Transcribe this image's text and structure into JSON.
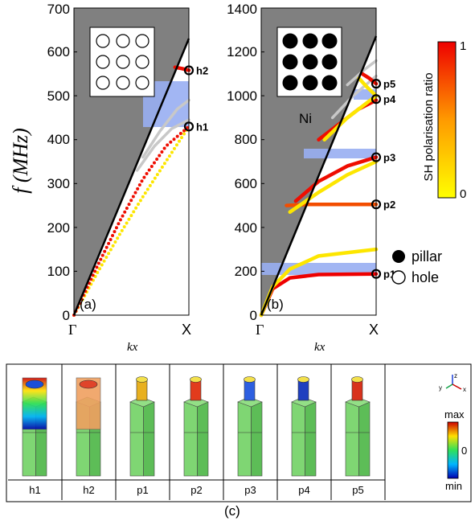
{
  "chart_data": [
    {
      "type": "line",
      "panel_label": "(a)",
      "ylabel": "f (MHz)",
      "xlabel": "kx",
      "x_ticks": [
        "Γ",
        "X"
      ],
      "ylim": [
        0,
        700
      ],
      "y_ticks": [
        0,
        100,
        200,
        300,
        400,
        500,
        600,
        700
      ],
      "bandgaps": [
        [
          430,
          520
        ]
      ],
      "series": [
        {
          "sh": 0.1,
          "style": "dotted",
          "x": [
            0,
            0.2,
            0.4,
            0.6,
            0.8,
            1.0
          ],
          "y": [
            0,
            95,
            185,
            270,
            350,
            430
          ]
        },
        {
          "sh": 0.95,
          "style": "dotted",
          "x": [
            0,
            0.2,
            0.4,
            0.6,
            0.8,
            1.0
          ],
          "y": [
            0,
            110,
            215,
            310,
            385,
            430
          ]
        },
        {
          "sh": 0.0,
          "style": "solid",
          "x": [
            0.55,
            0.7,
            0.85,
            1.0
          ],
          "y": [
            330,
            385,
            425,
            445
          ]
        },
        {
          "sh": 0.0,
          "style": "solid",
          "x": [
            0.6,
            0.75,
            0.9,
            1.0
          ],
          "y": [
            360,
            420,
            470,
            490
          ]
        },
        {
          "sh": 0.95,
          "style": "solid",
          "x": [
            0.88,
            0.94,
            1.0
          ],
          "y": [
            565,
            562,
            558
          ]
        }
      ],
      "modes": [
        {
          "label": "h1",
          "x": 1.0,
          "y": 430
        },
        {
          "label": "h2",
          "x": 1.0,
          "y": 558
        }
      ],
      "inset": "hole"
    },
    {
      "type": "line",
      "panel_label": "(b)",
      "xlabel": "kx",
      "x_ticks": [
        "Γ",
        "X"
      ],
      "ylim": [
        0,
        1400
      ],
      "y_ticks": [
        0,
        200,
        400,
        600,
        800,
        1000,
        1200,
        1400
      ],
      "bandgaps": [
        [
          175,
          230
        ],
        [
          715,
          760
        ],
        [
          985,
          1030
        ]
      ],
      "series": [
        {
          "sh": 1.0,
          "style": "solid",
          "x": [
            0,
            0.1,
            0.25,
            0.5,
            1.0
          ],
          "y": [
            0,
            120,
            170,
            185,
            188
          ]
        },
        {
          "sh": 0.1,
          "style": "solid",
          "x": [
            0,
            0.1,
            0.25,
            0.5,
            1.0
          ],
          "y": [
            0,
            130,
            210,
            270,
            300
          ]
        },
        {
          "sh": 0.7,
          "style": "solid",
          "x": [
            0.22,
            0.4,
            0.7,
            1.0
          ],
          "y": [
            500,
            505,
            505,
            505
          ]
        },
        {
          "sh": 0.1,
          "style": "solid",
          "x": [
            0.25,
            0.5,
            0.75,
            1.0
          ],
          "y": [
            470,
            560,
            640,
            700
          ]
        },
        {
          "sh": 0.95,
          "style": "solid",
          "x": [
            0.3,
            0.5,
            0.75,
            1.0
          ],
          "y": [
            520,
            610,
            680,
            720
          ]
        },
        {
          "sh": 0.95,
          "style": "solid",
          "x": [
            0.5,
            0.7,
            0.85,
            1.0
          ],
          "y": [
            800,
            880,
            940,
            980
          ]
        },
        {
          "sh": 0.1,
          "style": "solid",
          "x": [
            0.55,
            0.75,
            1.0
          ],
          "y": [
            800,
            900,
            1000
          ]
        },
        {
          "sh": 0.0,
          "style": "solid",
          "x": [
            0.62,
            0.8,
            1.0
          ],
          "y": [
            900,
            1000,
            1090
          ]
        },
        {
          "sh": 0.0,
          "style": "solid",
          "x": [
            0.75,
            0.9,
            1.0
          ],
          "y": [
            1050,
            1120,
            1160
          ]
        },
        {
          "sh": 0.95,
          "style": "solid",
          "x": [
            0.88,
            0.94,
            1.0
          ],
          "y": [
            1100,
            1080,
            1055
          ]
        },
        {
          "sh": 0.1,
          "style": "solid",
          "x": [
            0.85,
            0.92,
            1.0
          ],
          "y": [
            1080,
            1040,
            1000
          ]
        }
      ],
      "modes": [
        {
          "label": "p1",
          "x": 1.0,
          "y": 188
        },
        {
          "label": "p2",
          "x": 1.0,
          "y": 505
        },
        {
          "label": "p3",
          "x": 1.0,
          "y": 720
        },
        {
          "label": "p4",
          "x": 1.0,
          "y": 985
        },
        {
          "label": "p5",
          "x": 1.0,
          "y": 1055
        }
      ],
      "inset": "pillar",
      "inset_label": "Ni"
    }
  ],
  "colorbar": {
    "title": "SH polarisation ratio",
    "max": "1",
    "min": "0"
  },
  "legend": [
    {
      "symbol": "filled",
      "label": "pillar"
    },
    {
      "symbol": "open",
      "label": "hole"
    }
  ],
  "mode_shapes": {
    "labels": [
      "h1",
      "h2",
      "p1",
      "p2",
      "p3",
      "p4",
      "p5"
    ],
    "colorbar_max": "max",
    "colorbar_mid": "0",
    "colorbar_min": "min",
    "axes_labels": [
      "y",
      "z",
      "x"
    ],
    "caption": "(c)"
  },
  "colors": {
    "sound_cone": "#808080",
    "bandgap": "#98aef2",
    "sh_low": "#ffff00",
    "sh_high": "#ee0000",
    "neutral_band": "#c8c8c8"
  }
}
